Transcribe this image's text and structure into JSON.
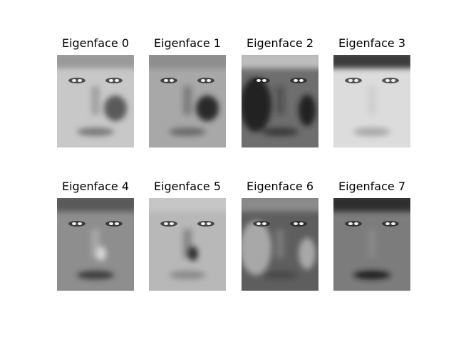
{
  "figure": {
    "panels": [
      {
        "title": "Eigenface 0",
        "tone": "light",
        "base": "#c8c8c8",
        "hair": "#9a9a9a",
        "shade": "#5a5a5a",
        "mouth": "#7a7a7a",
        "dark_side": "right"
      },
      {
        "title": "Eigenface 1",
        "tone": "mid",
        "base": "#a8a8a8",
        "hair": "#8e8e8e",
        "shade": "#2a2a2a",
        "mouth": "#6a6a6a",
        "dark_side": "right"
      },
      {
        "title": "Eigenface 2",
        "tone": "dark",
        "base": "#6e6e6e",
        "hair": "#bdbdbd",
        "shade": "#222222",
        "mouth": "#3a3a3a",
        "dark_side": "left"
      },
      {
        "title": "Eigenface 3",
        "tone": "pale",
        "base": "#dcdcdc",
        "hair": "#3a3a3a",
        "shade": "#b8b8b8",
        "mouth": "#a8a8a8",
        "dark_side": "none"
      },
      {
        "title": "Eigenface 4",
        "tone": "mid",
        "base": "#8e8e8e",
        "hair": "#5a5a5a",
        "shade": "#d8d8d8",
        "mouth": "#3a3a3a",
        "dark_side": "center"
      },
      {
        "title": "Eigenface 5",
        "tone": "light",
        "base": "#b8b8b8",
        "hair": "#c6c6c6",
        "shade": "#2e2e2e",
        "mouth": "#8a8a8a",
        "dark_side": "center"
      },
      {
        "title": "Eigenface 6",
        "tone": "dark",
        "base": "#5e5e5e",
        "hair": "#8a8a8a",
        "shade": "#a8a8a8",
        "mouth": "#4a4a4a",
        "dark_side": "left"
      },
      {
        "title": "Eigenface 7",
        "tone": "mid",
        "base": "#7c7c7c",
        "hair": "#2e2e2e",
        "shade": "#9a9a9a",
        "mouth": "#1e1e1e",
        "dark_side": "none"
      }
    ]
  }
}
